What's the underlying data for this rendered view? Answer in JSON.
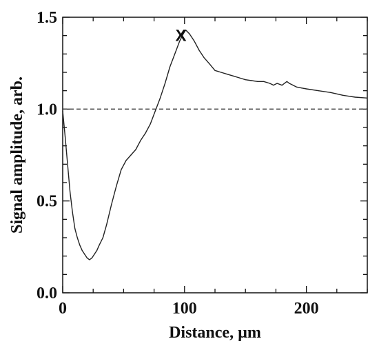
{
  "chart_data": {
    "type": "line",
    "xlabel": "Distance, µm",
    "ylabel": "Signal amplitude, arb.",
    "xlim": [
      0,
      250
    ],
    "ylim": [
      0,
      1.5
    ],
    "x_ticks": [
      0,
      100,
      200
    ],
    "y_ticks": [
      0.0,
      0.5,
      1.0,
      1.5
    ],
    "x_tick_labels": [
      "0",
      "100",
      "200"
    ],
    "y_tick_labels": [
      "0.0",
      "0.5",
      "1.0",
      "1.5"
    ],
    "grid": false,
    "reference_line": {
      "y": 1.0,
      "style": "dashed"
    },
    "annotation": {
      "text": "X",
      "x": 97,
      "y": 1.4
    },
    "series": [
      {
        "color": "#222222",
        "x": [
          0,
          2,
          4,
          6,
          8,
          10,
          12,
          14,
          16,
          18,
          20,
          22,
          24,
          26,
          28,
          30,
          33,
          36,
          40,
          44,
          48,
          52,
          56,
          60,
          64,
          68,
          72,
          76,
          80,
          84,
          88,
          92,
          96,
          99,
          101,
          104,
          108,
          112,
          116,
          120,
          125,
          130,
          135,
          140,
          145,
          150,
          155,
          160,
          165,
          170,
          173,
          176,
          180,
          184,
          186,
          189,
          192,
          196,
          200,
          210,
          220,
          230,
          240,
          250
        ],
        "y": [
          0.99,
          0.85,
          0.7,
          0.55,
          0.44,
          0.35,
          0.3,
          0.26,
          0.23,
          0.21,
          0.19,
          0.18,
          0.19,
          0.21,
          0.23,
          0.26,
          0.3,
          0.37,
          0.48,
          0.58,
          0.67,
          0.72,
          0.75,
          0.78,
          0.83,
          0.87,
          0.92,
          0.99,
          1.06,
          1.14,
          1.23,
          1.3,
          1.37,
          1.41,
          1.43,
          1.41,
          1.37,
          1.32,
          1.28,
          1.25,
          1.21,
          1.2,
          1.19,
          1.18,
          1.17,
          1.16,
          1.155,
          1.15,
          1.15,
          1.14,
          1.13,
          1.14,
          1.13,
          1.15,
          1.14,
          1.13,
          1.12,
          1.115,
          1.11,
          1.1,
          1.09,
          1.075,
          1.065,
          1.06
        ]
      }
    ]
  },
  "style": {
    "axis_color": "#111111",
    "line_color": "#222222",
    "background": "#ffffff"
  }
}
